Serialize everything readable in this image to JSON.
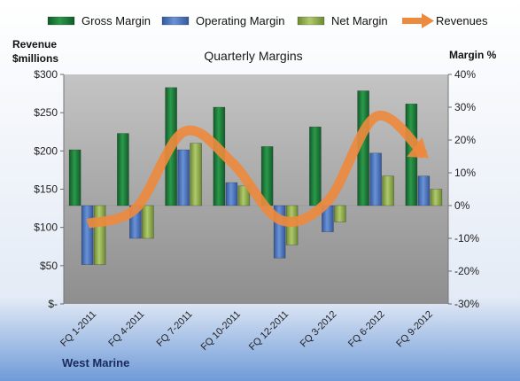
{
  "chart_data": {
    "type": "bar",
    "title": "Quarterly Margins",
    "company": "West Marine",
    "categories": [
      "FQ 1-2011",
      "FQ 4-2011",
      "FQ 7-2011",
      "FQ 10-2011",
      "FQ 12-2011",
      "FQ 3-2012",
      "FQ 6-2012",
      "FQ 9-2012"
    ],
    "series": [
      {
        "name": "Gross Margin",
        "kind": "bar",
        "axis": "right",
        "color": "#1e7e3e",
        "values": [
          17,
          22,
          36,
          30,
          18,
          24,
          35,
          31
        ]
      },
      {
        "name": "Operating Margin",
        "kind": "bar",
        "axis": "right",
        "color": "#4a72b8",
        "values": [
          -18,
          -10,
          17,
          7,
          -16,
          -8,
          16,
          9
        ]
      },
      {
        "name": "Net Margin",
        "kind": "bar",
        "axis": "right",
        "color": "#8fac4b",
        "values": [
          -18,
          -10,
          19,
          6,
          -12,
          -5,
          9,
          5
        ]
      },
      {
        "name": "Revenues",
        "kind": "line",
        "axis": "left",
        "color": "#ec8a3e",
        "values": [
          105,
          125,
          225,
          185,
          110,
          135,
          245,
          195
        ]
      }
    ],
    "y_left": {
      "label_lines": [
        "Revenue",
        "$millions"
      ],
      "range": [
        0,
        300
      ],
      "ticks": [
        0,
        50,
        100,
        150,
        200,
        250,
        300
      ],
      "tick_labels": [
        "$-",
        "$50",
        "$100",
        "$150",
        "$200",
        "$250",
        "$300"
      ]
    },
    "y_right": {
      "label": "Margin %",
      "range": [
        -30,
        40
      ],
      "ticks": [
        -30,
        -20,
        -10,
        0,
        10,
        20,
        30,
        40
      ],
      "tick_labels": [
        "-30%",
        "-20%",
        "-10%",
        "0%",
        "10%",
        "20%",
        "30%",
        "40%"
      ]
    },
    "legend_position": "top",
    "grid": false
  }
}
